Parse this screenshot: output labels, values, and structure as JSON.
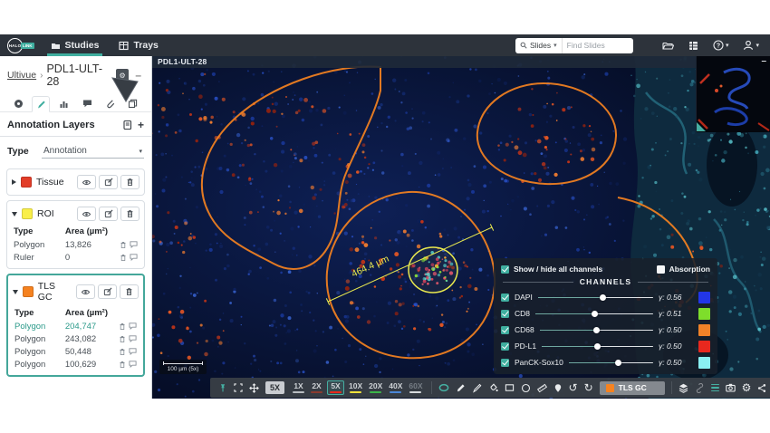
{
  "icons": {
    "undo": "↺",
    "redo": "↻",
    "gear": "⚙",
    "caret_down": "▾",
    "question": "?",
    "minimize": "–",
    "plus": "+",
    "breadcrumb_sep": "›"
  },
  "topbar": {
    "logo_halo": "HALO",
    "logo_link": "LINK",
    "nav_studies": "Studies",
    "nav_trays": "Trays",
    "search_scope": "Slides",
    "search_placeholder": "Find Slides"
  },
  "sidebar": {
    "breadcrumb_parent": "Ultivue",
    "breadcrumb_current": "PDL1-ULT-28",
    "panel_title": "Annotation Layers",
    "type_label": "Type",
    "type_value": "Annotation",
    "col_type": "Type",
    "col_area": "Area (µm²)",
    "layers": [
      {
        "name": "Tissue",
        "color": "#e23d28"
      },
      {
        "name": "ROI",
        "color": "#f9ef49",
        "rows": [
          {
            "type": "Polygon",
            "area": "13,826"
          },
          {
            "type": "Ruler",
            "area": "0"
          }
        ]
      },
      {
        "name": "TLS GC",
        "color": "#f58220",
        "rows": [
          {
            "type": "Polygon",
            "area": "204,747"
          },
          {
            "type": "Polygon",
            "area": "243,082"
          },
          {
            "type": "Polygon",
            "area": "50,448"
          },
          {
            "type": "Polygon",
            "area": "100,629"
          }
        ]
      }
    ]
  },
  "viewer": {
    "slide_label": "PDL1-ULT-28",
    "ruler_measurement": "464.4 µm",
    "scalebar_label": "100 µm (5x)",
    "annotation_outline_color": "#f58220",
    "roi_outline_color": "#e9e94f"
  },
  "channels_panel": {
    "show_hide_label": "Show / hide all channels",
    "absorption_label": "Absorption",
    "title": "CHANNELS",
    "channels": [
      {
        "name": "DAPI",
        "gamma": "γ: 0.56",
        "color": "#2236e8",
        "level_pct": 56
      },
      {
        "name": "CD8",
        "gamma": "γ: 0.51",
        "color": "#7ede2b",
        "level_pct": 50
      },
      {
        "name": "CD68",
        "gamma": "γ: 0.50",
        "color": "#f08228",
        "level_pct": 50
      },
      {
        "name": "PD-L1",
        "gamma": "γ: 0.50",
        "color": "#e8281e",
        "level_pct": 50
      },
      {
        "name": "PanCK-Sox10",
        "gamma": "γ: 0.50",
        "color": "#8af0f2",
        "level_pct": 59
      }
    ]
  },
  "toolbar": {
    "current_zoom": "5X",
    "zoom_presets": [
      {
        "label": "1X",
        "underline": "#b9bdc2"
      },
      {
        "label": "2X",
        "underline": "#8a3b30"
      },
      {
        "label": "5X",
        "underline": "#e8291c"
      },
      {
        "label": "10X",
        "underline": "#f2e23c"
      },
      {
        "label": "20X",
        "underline": "#3cb54a"
      },
      {
        "label": "40X",
        "underline": "#4a86d8"
      },
      {
        "label": "60X",
        "underline": "#d8dbde"
      }
    ],
    "annotation_layer_select": {
      "label": "TLS GC",
      "color": "#f58220"
    }
  }
}
